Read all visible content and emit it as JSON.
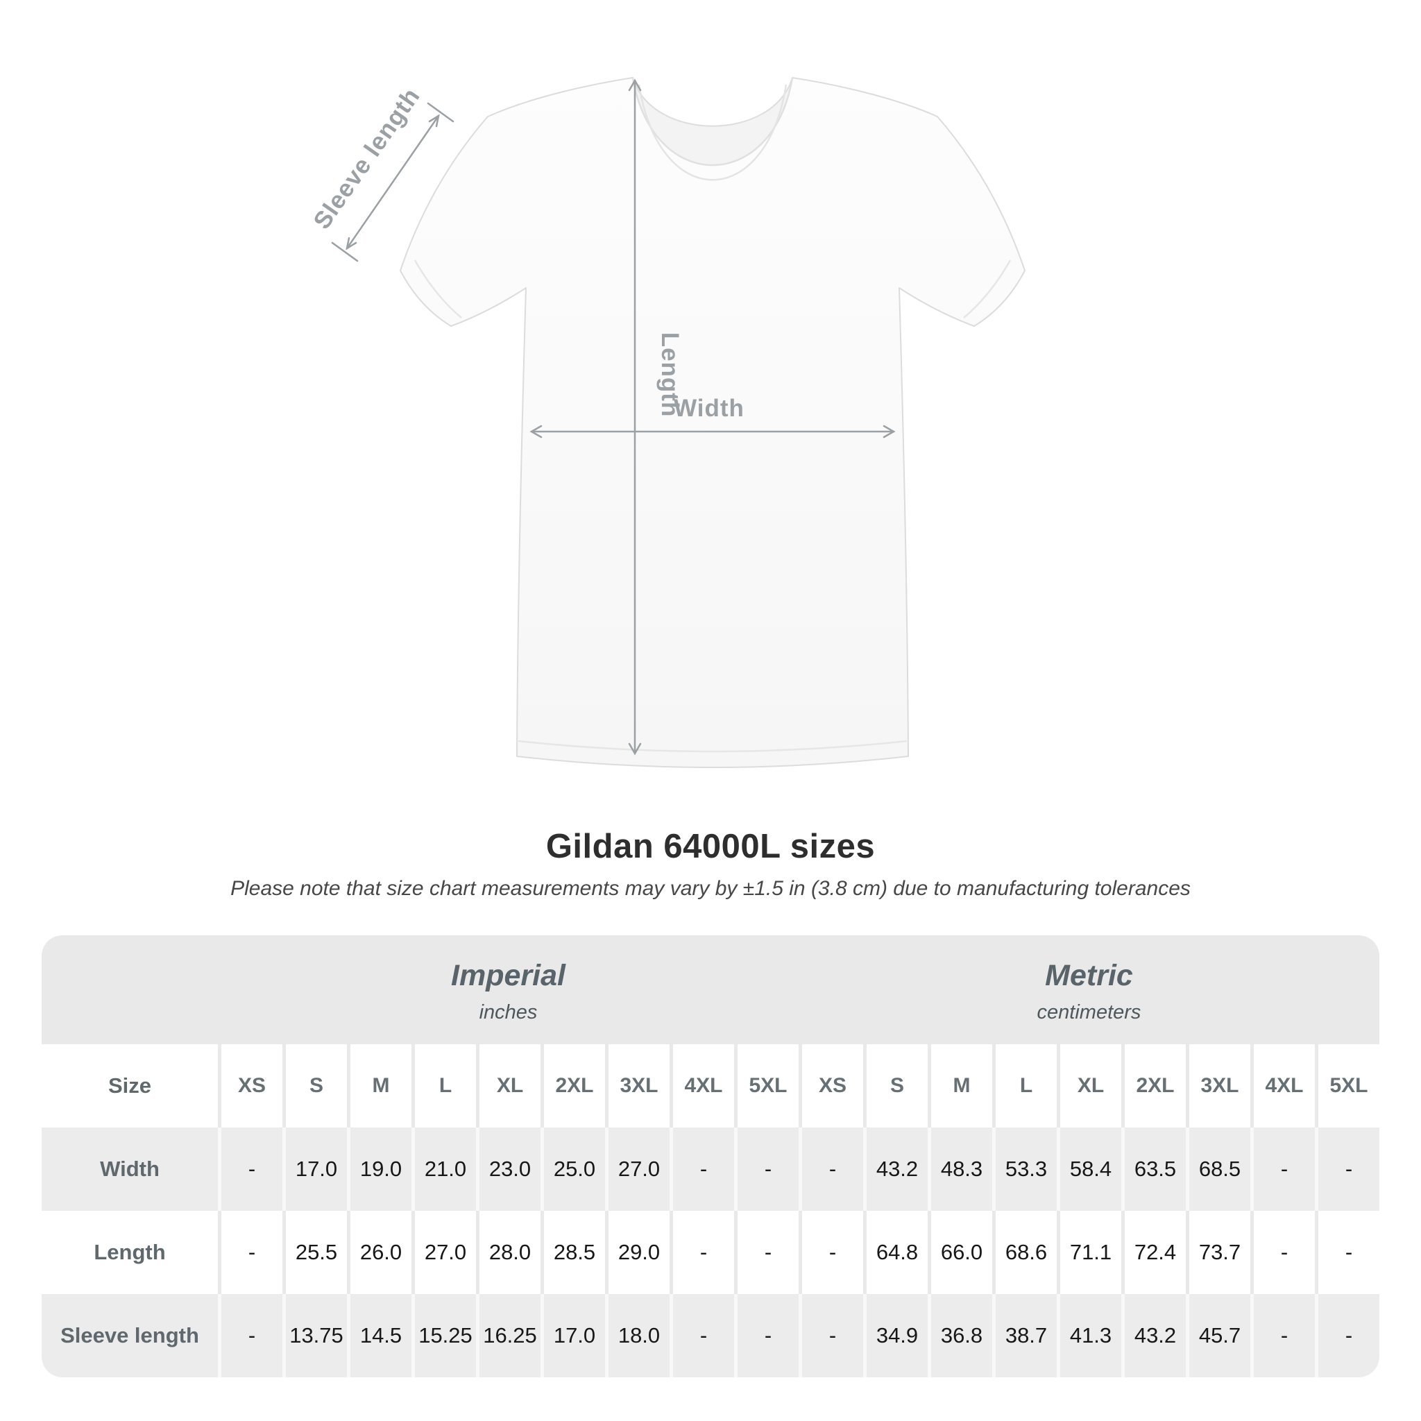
{
  "title": "Gildan 64000L sizes",
  "subtitle": "Please note that size chart measurements may vary by ±1.5 in (3.8 cm) due to manufacturing tolerances",
  "diagram": {
    "sleeve_length_label": "Sleeve length",
    "length_label": "Length",
    "width_label": "Width"
  },
  "table": {
    "size_header": "Size",
    "unit_groups": [
      {
        "label": "Imperial",
        "sublabel": "inches"
      },
      {
        "label": "Metric",
        "sublabel": "centimeters"
      }
    ],
    "sizes": [
      "XS",
      "S",
      "M",
      "L",
      "XL",
      "2XL",
      "3XL",
      "4XL",
      "5XL"
    ],
    "rows": [
      {
        "label": "Width",
        "imperial": [
          "-",
          "17.0",
          "19.0",
          "21.0",
          "23.0",
          "25.0",
          "27.0",
          "-",
          "-"
        ],
        "metric": [
          "-",
          "43.2",
          "48.3",
          "53.3",
          "58.4",
          "63.5",
          "68.5",
          "-",
          "-"
        ]
      },
      {
        "label": "Length",
        "imperial": [
          "-",
          "25.5",
          "26.0",
          "27.0",
          "28.0",
          "28.5",
          "29.0",
          "-",
          "-"
        ],
        "metric": [
          "-",
          "64.8",
          "66.0",
          "68.6",
          "71.1",
          "72.4",
          "73.7",
          "-",
          "-"
        ]
      },
      {
        "label": "Sleeve length",
        "imperial": [
          "-",
          "13.75",
          "14.5",
          "15.25",
          "16.25",
          "17.0",
          "18.0",
          "-",
          "-"
        ],
        "metric": [
          "-",
          "34.9",
          "36.8",
          "38.7",
          "41.3",
          "43.2",
          "45.7",
          "-",
          "-"
        ]
      }
    ]
  },
  "colors": {
    "band_gray": "#e9e9e9",
    "row_gray": "#ececec",
    "annotation_gray": "#9aa0a4"
  }
}
